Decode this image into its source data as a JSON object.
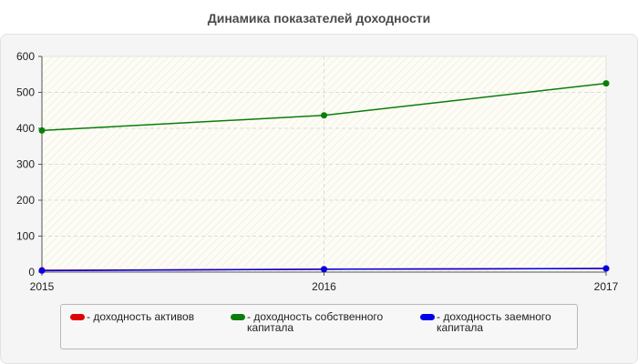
{
  "title": "Динамика показателей доходности",
  "chart_data": {
    "type": "line",
    "title": "Динамика показателей доходности",
    "x": [
      "2015",
      "2016",
      "2017"
    ],
    "ylim": [
      0,
      600
    ],
    "yticks": [
      "0",
      "100",
      "200",
      "300",
      "400",
      "500",
      "600"
    ],
    "grid": true,
    "legend_position": "bottom",
    "series": [
      {
        "name": "- доходность активов",
        "color": "#e00000",
        "values": [
          5,
          8,
          10
        ]
      },
      {
        "name": "- доходность собственного капитала",
        "color": "#0a7d0a",
        "values": [
          394,
          436,
          525
        ]
      },
      {
        "name": "- доходность заемного капитала",
        "color": "#0000e6",
        "values": [
          4,
          8,
          10
        ]
      }
    ]
  },
  "colors": {
    "panel_bg": "#f5f5f5",
    "plot_bg": "#fefef6",
    "grid": "#dcdcdc"
  }
}
